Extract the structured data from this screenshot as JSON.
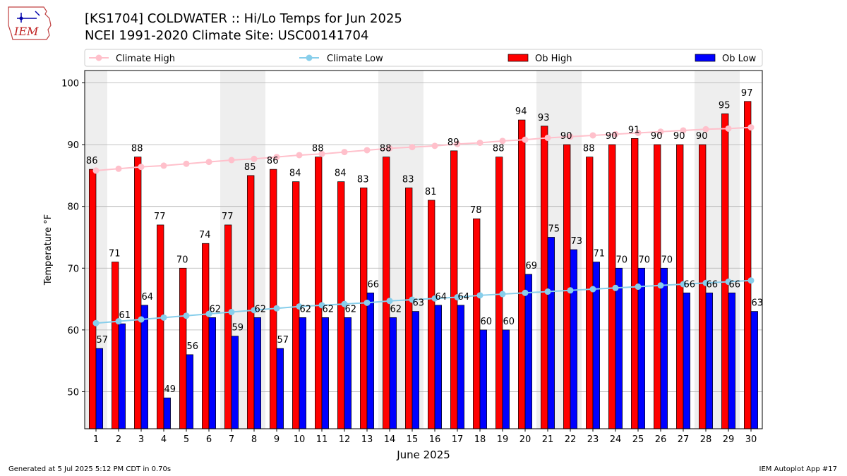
{
  "header": {
    "logo_text": "IEM",
    "title_line1": "[KS1704] COLDWATER :: Hi/Lo Temps for Jun 2025",
    "title_line2": "NCEI 1991-2020 Climate Site: USC00141704"
  },
  "footer": {
    "generated": "Generated at 5 Jul 2025 5:12 PM CDT in 0.70s",
    "app": "IEM Autoplot App #17"
  },
  "colors": {
    "ob_high": "#ff0000",
    "ob_low": "#0000ff",
    "climate_high": "#ffc0cb",
    "climate_low": "#87ceeb",
    "weekend_shade": "#eeeeee",
    "grid": "#b0b0b0"
  },
  "chart_data": {
    "type": "bar",
    "title": "[KS1704] COLDWATER :: Hi/Lo Temps for Jun 2025",
    "subtitle": "NCEI 1991-2020 Climate Site: USC00141704",
    "xlabel": "June 2025",
    "ylabel": "Temperature °F",
    "ylim": [
      44,
      102
    ],
    "yticks": [
      50,
      60,
      70,
      80,
      90,
      100
    ],
    "grid": true,
    "legend_placement": "top",
    "categories": [
      1,
      2,
      3,
      4,
      5,
      6,
      7,
      8,
      9,
      10,
      11,
      12,
      13,
      14,
      15,
      16,
      17,
      18,
      19,
      20,
      21,
      22,
      23,
      24,
      25,
      26,
      27,
      28,
      29,
      30
    ],
    "weekend_days": [
      1,
      7,
      8,
      14,
      15,
      21,
      22,
      28,
      29
    ],
    "series": [
      {
        "name": "Ob High",
        "kind": "bar",
        "values": [
          86,
          71,
          88,
          77,
          70,
          74,
          77,
          85,
          86,
          84,
          88,
          84,
          83,
          88,
          83,
          81,
          89,
          78,
          88,
          94,
          93,
          90,
          88,
          90,
          91,
          90,
          90,
          90,
          95,
          97
        ]
      },
      {
        "name": "Ob Low",
        "kind": "bar",
        "values": [
          57,
          61,
          64,
          49,
          56,
          62,
          59,
          62,
          57,
          62,
          62,
          62,
          66,
          62,
          63,
          64,
          64,
          60,
          60,
          69,
          75,
          73,
          71,
          70,
          70,
          70,
          66,
          66,
          66,
          63
        ]
      },
      {
        "name": "Climate High",
        "kind": "line",
        "values": [
          85.8,
          86.1,
          86.4,
          86.6,
          86.9,
          87.2,
          87.5,
          87.7,
          88.0,
          88.3,
          88.5,
          88.8,
          89.1,
          89.4,
          89.6,
          89.8,
          90.1,
          90.3,
          90.6,
          90.8,
          91.1,
          91.3,
          91.5,
          91.7,
          91.9,
          92.1,
          92.3,
          92.5,
          92.6,
          92.8
        ]
      },
      {
        "name": "Climate Low",
        "kind": "line",
        "values": [
          61.1,
          61.4,
          61.7,
          62.0,
          62.3,
          62.6,
          62.9,
          63.2,
          63.5,
          63.8,
          64.0,
          64.2,
          64.4,
          64.7,
          64.9,
          65.1,
          65.3,
          65.6,
          65.8,
          66.0,
          66.2,
          66.4,
          66.6,
          66.8,
          67.0,
          67.2,
          67.4,
          67.6,
          67.8,
          68.0
        ]
      }
    ]
  }
}
